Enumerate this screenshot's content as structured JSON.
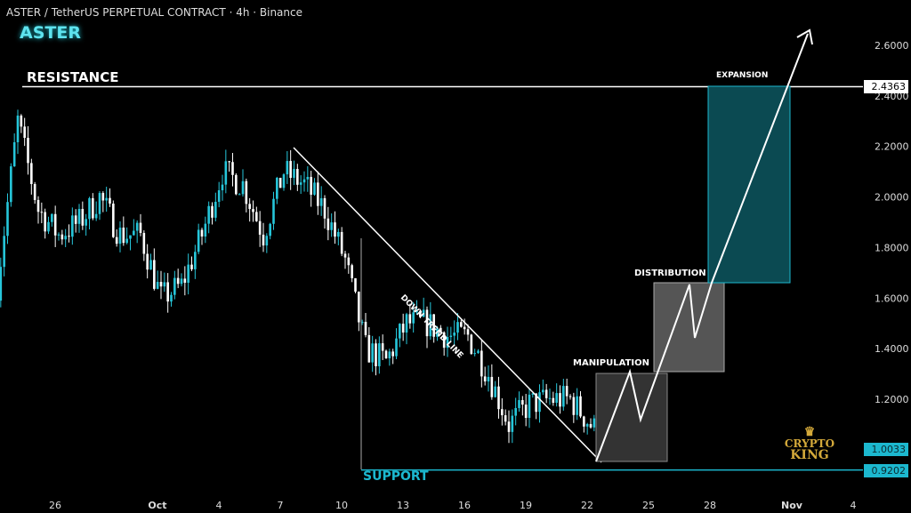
{
  "header": {
    "title": "ASTER / TetherUS PERPETUAL CONTRACT · 4h · Binance",
    "symbol": "ASTER"
  },
  "annotations": {
    "resistance": "RESISTANCE",
    "support": "SUPPORT",
    "trend": "DOWN TREND LINE",
    "manipulation": "MANIPULATION",
    "distribution": "DISTRIBUTION",
    "expansion": "EXPANSION"
  },
  "logo": {
    "line1": "CRYPTO",
    "line2": "KING"
  },
  "price_tags": {
    "resistance": "2.4363",
    "current": "1.0033",
    "support": "0.9202"
  },
  "colors": {
    "up": "#26c6da",
    "down": "#ffffff",
    "accent": "#1cb8cf",
    "box_teal": "#0b4a52"
  },
  "chart_data": {
    "type": "candlestick",
    "title": "ASTER / TetherUS PERPETUAL CONTRACT · 4h · Binance",
    "ylim": [
      0.8,
      2.75
    ],
    "y_ticks": [
      "2.6000",
      "2.4000",
      "2.2000",
      "2.0000",
      "1.8000",
      "1.6000",
      "1.4000",
      "1.2000"
    ],
    "y_tick_values": [
      2.6,
      2.4,
      2.2,
      2.0,
      1.8,
      1.6,
      1.4,
      1.2
    ],
    "x_ticks": [
      "26",
      "Oct",
      "4",
      "7",
      "10",
      "13",
      "16",
      "19",
      "22",
      "25",
      "28",
      "Nov",
      "4"
    ],
    "daily_close_from_sep23": [
      1.65,
      2.3,
      1.95,
      1.85,
      1.9,
      2.0,
      1.85,
      1.85,
      1.6,
      1.65,
      1.85,
      2.1,
      2.05,
      1.85,
      2.1,
      2.05,
      1.95,
      1.75,
      1.4,
      1.35,
      1.5,
      1.5,
      1.45,
      1.45,
      1.3,
      1.1,
      1.18,
      1.2,
      1.2,
      1.1,
      1.0
    ],
    "resistance": 2.4363,
    "support": 0.9202,
    "last": 1.0033
  }
}
